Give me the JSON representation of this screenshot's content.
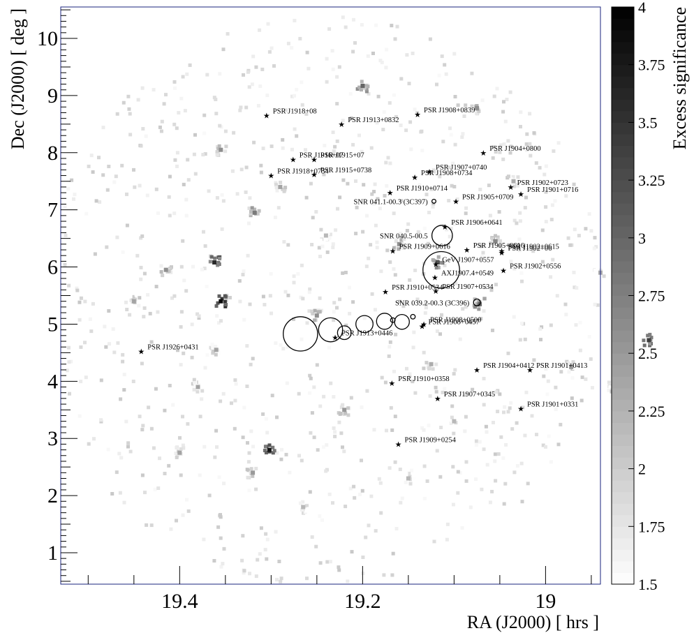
{
  "chart_data": {
    "type": "heatmap",
    "xlabel": "RA (J2000) [ hrs ]",
    "ylabel": "Dec (J2000) [ deg ]",
    "xlim": [
      19.53,
      18.94
    ],
    "ylim": [
      0.45,
      10.55
    ],
    "x_reversed": true,
    "x_ticks": [
      {
        "value": 19.4,
        "label": "19.4"
      },
      {
        "value": 19.2,
        "label": "19.2"
      },
      {
        "value": 19.0,
        "label": "19"
      }
    ],
    "y_ticks": [
      {
        "value": 1,
        "label": "1"
      },
      {
        "value": 2,
        "label": "2"
      },
      {
        "value": 3,
        "label": "3"
      },
      {
        "value": 4,
        "label": "4"
      },
      {
        "value": 5,
        "label": "5"
      },
      {
        "value": 6,
        "label": "6"
      },
      {
        "value": 7,
        "label": "7"
      },
      {
        "value": 8,
        "label": "8"
      },
      {
        "value": 9,
        "label": "9"
      },
      {
        "value": 10,
        "label": "10"
      }
    ],
    "colorbar": {
      "title": "Excess significance",
      "range": [
        1.5,
        4
      ],
      "ticks": [
        "1.5",
        "1.75",
        "2",
        "2.25",
        "2.5",
        "2.75",
        "3",
        "3.25",
        "3.5",
        "3.75",
        "4"
      ]
    },
    "hotspots": [
      {
        "ra": 19.355,
        "dec": 5.4,
        "sig": 3.9
      },
      {
        "ra": 19.362,
        "dec": 6.08,
        "sig": 3.6
      },
      {
        "ra": 19.302,
        "dec": 2.8,
        "sig": 3.8
      },
      {
        "ra": 19.2,
        "dec": 9.17,
        "sig": 3.0
      },
      {
        "ra": 19.318,
        "dec": 6.95,
        "sig": 2.8
      },
      {
        "ra": 19.072,
        "dec": 5.35,
        "sig": 3.0
      },
      {
        "ra": 18.887,
        "dec": 4.72,
        "sig": 3.4
      },
      {
        "ra": 19.415,
        "dec": 5.95,
        "sig": 2.6
      },
      {
        "ra": 19.38,
        "dec": 3.9,
        "sig": 2.4
      },
      {
        "ra": 19.118,
        "dec": 6.08,
        "sig": 3.2
      },
      {
        "ra": 19.055,
        "dec": 6.45,
        "sig": 2.7
      },
      {
        "ra": 19.16,
        "dec": 6.4,
        "sig": 2.6
      },
      {
        "ra": 19.25,
        "dec": 5.15,
        "sig": 2.6
      },
      {
        "ra": 19.355,
        "dec": 8.05,
        "sig": 2.6
      },
      {
        "ra": 19.29,
        "dec": 7.4,
        "sig": 2.4
      },
      {
        "ra": 19.22,
        "dec": 3.5,
        "sig": 2.5
      },
      {
        "ra": 19.32,
        "dec": 2.4,
        "sig": 2.5
      },
      {
        "ra": 19.265,
        "dec": 1.8,
        "sig": 2.2
      },
      {
        "ra": 19.45,
        "dec": 5.4,
        "sig": 2.4
      },
      {
        "ra": 19.125,
        "dec": 4.3,
        "sig": 2.3
      },
      {
        "ra": 19.075,
        "dec": 8.78,
        "sig": 2.6
      },
      {
        "ra": 18.972,
        "dec": 4.25,
        "sig": 2.5
      },
      {
        "ra": 18.925,
        "dec": 3.9,
        "sig": 2.4
      },
      {
        "ra": 19.36,
        "dec": 4.55,
        "sig": 2.4
      },
      {
        "ra": 19.15,
        "dec": 2.3,
        "sig": 2.2
      },
      {
        "ra": 18.94,
        "dec": 5.9,
        "sig": 2.3
      },
      {
        "ra": 19.4,
        "dec": 2.75,
        "sig": 2.4
      },
      {
        "ra": 19.1,
        "dec": 3.3,
        "sig": 2.2
      },
      {
        "ra": 19.035,
        "dec": 7.5,
        "sig": 2.3
      },
      {
        "ra": 19.24,
        "dec": 6.55,
        "sig": 2.2
      }
    ],
    "point_sources": [
      {
        "name": "PSR J1918+08",
        "ra": 19.305,
        "dec": 8.65
      },
      {
        "name": "PSR J1913+0832",
        "ra": 19.223,
        "dec": 8.5
      },
      {
        "name": "PSR J1908+0839",
        "ra": 19.14,
        "dec": 8.67
      },
      {
        "name": "PSR J1916+07",
        "ra": 19.276,
        "dec": 7.88
      },
      {
        "name": "PSR J1915+07",
        "ra": 19.253,
        "dec": 7.88
      },
      {
        "name": "PSR J1918+0734",
        "ra": 19.3,
        "dec": 7.6
      },
      {
        "name": "PSR J1915+0738",
        "ra": 19.253,
        "dec": 7.62
      },
      {
        "name": "PSR J1904+0800",
        "ra": 19.068,
        "dec": 8.0
      },
      {
        "name": "PSR J1907+0740",
        "ra": 19.127,
        "dec": 7.67
      },
      {
        "name": "PSR J1908+0734",
        "ra": 19.143,
        "dec": 7.57
      },
      {
        "name": "PSR J1902+0723",
        "ra": 19.038,
        "dec": 7.4
      },
      {
        "name": "PSR J1901+0716",
        "ra": 19.027,
        "dec": 7.28
      },
      {
        "name": "PSR J1910+0714",
        "ra": 19.17,
        "dec": 7.3
      },
      {
        "name": "PSR J1905+0709",
        "ra": 19.098,
        "dec": 7.15
      },
      {
        "name": "PSR J1906+0641",
        "ra": 19.11,
        "dec": 6.7
      },
      {
        "name": "PSR J1905+0616",
        "ra": 19.086,
        "dec": 6.3
      },
      {
        "name": "PSR J1909+0616",
        "ra": 19.167,
        "dec": 6.28
      },
      {
        "name": "PSR J1902+0615",
        "ra": 19.048,
        "dec": 6.28
      },
      {
        "name": "PSR J1902+06",
        "ra": 19.048,
        "dec": 6.25
      },
      {
        "name": "GeV J1907+0557",
        "ra": 19.12,
        "dec": 6.05
      },
      {
        "name": "PSR J1902+0556",
        "ra": 19.046,
        "dec": 5.94
      },
      {
        "name": "AXJ1907.4+0549",
        "ra": 19.121,
        "dec": 5.82
      },
      {
        "name": "PSR J1910+0534",
        "ra": 19.175,
        "dec": 5.57
      },
      {
        "name": "PSR J1907+0534",
        "ra": 19.12,
        "dec": 5.58
      },
      {
        "name": "PSR J1908+0500",
        "ra": 19.133,
        "dec": 5.0
      },
      {
        "name": "PSR J1908+0457",
        "ra": 19.135,
        "dec": 4.96
      },
      {
        "name": "PSR J1913+0446",
        "ra": 19.23,
        "dec": 4.77
      },
      {
        "name": "PSR J1926+0431",
        "ra": 19.442,
        "dec": 4.52
      },
      {
        "name": "PSR J1904+0412",
        "ra": 19.075,
        "dec": 4.2
      },
      {
        "name": "PSR J1901+0413",
        "ra": 19.017,
        "dec": 4.2
      },
      {
        "name": "PSR J1910+0358",
        "ra": 19.168,
        "dec": 3.97
      },
      {
        "name": "PSR J1907+0345",
        "ra": 19.118,
        "dec": 3.7
      },
      {
        "name": "PSR J1901+0331",
        "ra": 19.027,
        "dec": 3.52
      },
      {
        "name": "PSR J1909+0254",
        "ra": 19.161,
        "dec": 2.9
      }
    ],
    "extended_sources": [
      {
        "name": "SNR 041.1-00.3 (3C397)",
        "ra": 19.122,
        "dec": 7.15,
        "radius_deg": 0.035,
        "show_label": true
      },
      {
        "name": "SNR 040.5-00.5",
        "ra": 19.113,
        "dec": 6.55,
        "radius_deg": 0.18,
        "show_label": true
      },
      {
        "name": "",
        "ra": 19.114,
        "dec": 5.95,
        "radius_deg": 0.32,
        "show_label": false
      },
      {
        "name": "SNR 039.2-00.3 (3C396)",
        "ra": 19.075,
        "dec": 5.38,
        "radius_deg": 0.06,
        "show_label": true
      },
      {
        "name": "",
        "ra": 19.268,
        "dec": 4.83,
        "radius_deg": 0.3,
        "show_label": false
      },
      {
        "name": "",
        "ra": 19.235,
        "dec": 4.9,
        "radius_deg": 0.21,
        "show_label": false
      },
      {
        "name": "",
        "ra": 19.22,
        "dec": 4.85,
        "radius_deg": 0.12,
        "show_label": false
      },
      {
        "name": "",
        "ra": 19.198,
        "dec": 5.0,
        "radius_deg": 0.15,
        "show_label": false
      },
      {
        "name": "",
        "ra": 19.176,
        "dec": 5.05,
        "radius_deg": 0.14,
        "show_label": false
      },
      {
        "name": "",
        "ra": 19.157,
        "dec": 5.04,
        "radius_deg": 0.13,
        "show_label": false
      },
      {
        "name": "",
        "ra": 19.167,
        "dec": 5.07,
        "radius_deg": 0.04,
        "show_label": false
      },
      {
        "name": "",
        "ra": 19.145,
        "dec": 5.13,
        "radius_deg": 0.04,
        "show_label": false
      }
    ]
  }
}
